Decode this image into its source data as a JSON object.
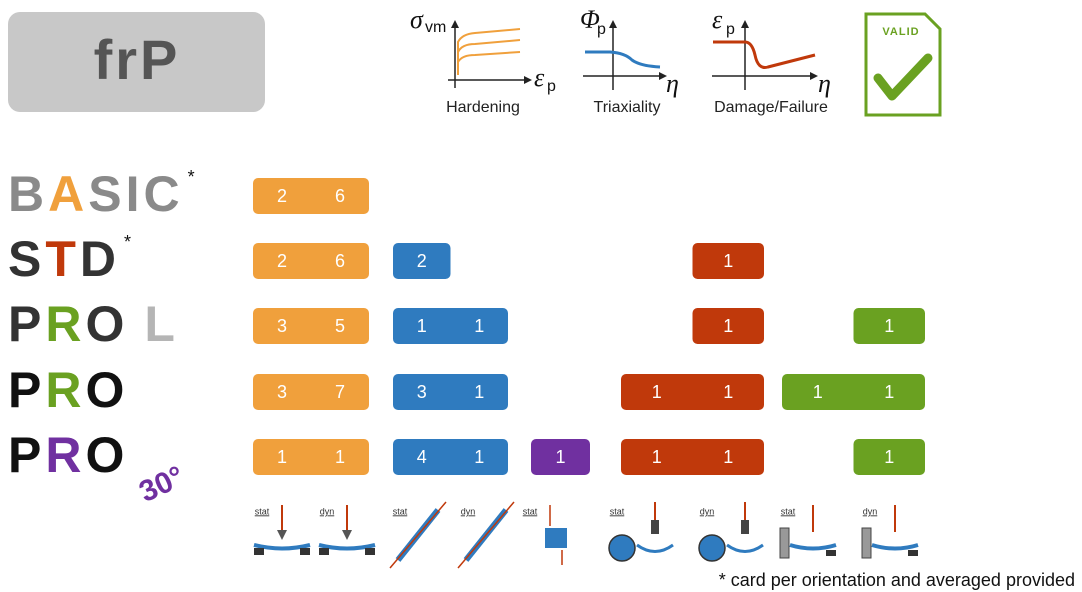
{
  "logo": "frP",
  "header": {
    "plots": [
      {
        "caption": "Hardening",
        "y_symbol": "σ",
        "y_sub": "vm",
        "x_symbol": "ε",
        "x_sub": "p"
      },
      {
        "caption": "Triaxiality",
        "y_symbol": "Φ",
        "y_sub": "p",
        "x_symbol": "η"
      },
      {
        "caption": "Damage/Failure",
        "y_symbol": "ε",
        "y_sub": "p",
        "x_symbol": "η"
      }
    ],
    "valid": "VALID"
  },
  "rows": [
    {
      "label": "BASIC",
      "accent": 1,
      "accent_color": "#f0a03c",
      "text_color": "#8a8a8a",
      "note": "*",
      "groups": [
        {
          "color": "#f0a03c",
          "values": [
            2,
            6
          ]
        },
        {
          "color": "#2f7bbf",
          "values": [
            null,
            null
          ]
        },
        {
          "color": "#7030a0",
          "values": [
            null
          ]
        },
        {
          "color": "#c0390b",
          "values": [
            null,
            null
          ]
        },
        {
          "color": "#6aa121",
          "values": [
            null,
            null
          ]
        }
      ]
    },
    {
      "label": "STD",
      "accent": 1,
      "accent_color": "#c0390b",
      "text_color": "#333333",
      "note": "*",
      "groups": [
        {
          "color": "#f0a03c",
          "values": [
            2,
            6
          ]
        },
        {
          "color": "#2f7bbf",
          "values": [
            2,
            null
          ]
        },
        {
          "color": "#7030a0",
          "values": [
            null
          ]
        },
        {
          "color": "#c0390b",
          "values": [
            null,
            1
          ]
        },
        {
          "color": "#6aa121",
          "values": [
            null,
            null
          ]
        }
      ]
    },
    {
      "label": "PRO",
      "suffix": "L",
      "accent": 1,
      "accent_color": "#6aa121",
      "text_color": "#333333",
      "groups": [
        {
          "color": "#f0a03c",
          "values": [
            3,
            5
          ]
        },
        {
          "color": "#2f7bbf",
          "values": [
            1,
            1
          ]
        },
        {
          "color": "#7030a0",
          "values": [
            null
          ]
        },
        {
          "color": "#c0390b",
          "values": [
            null,
            1
          ]
        },
        {
          "color": "#6aa121",
          "values": [
            null,
            1
          ]
        }
      ]
    },
    {
      "label": "PRO",
      "accent": 1,
      "accent_color": "#6aa121",
      "text_color": "#111111",
      "groups": [
        {
          "color": "#f0a03c",
          "values": [
            3,
            7
          ]
        },
        {
          "color": "#2f7bbf",
          "values": [
            3,
            1
          ]
        },
        {
          "color": "#7030a0",
          "values": [
            null
          ]
        },
        {
          "color": "#c0390b",
          "values": [
            1,
            1
          ]
        },
        {
          "color": "#6aa121",
          "values": [
            1,
            1
          ]
        }
      ]
    },
    {
      "label": "PRO",
      "suffix": "30°",
      "accent": 1,
      "accent_color": "#7030a0",
      "text_color": "#111111",
      "groups": [
        {
          "color": "#f0a03c",
          "values": [
            1,
            1
          ]
        },
        {
          "color": "#2f7bbf",
          "values": [
            4,
            1
          ]
        },
        {
          "color": "#7030a0",
          "values": [
            1
          ]
        },
        {
          "color": "#c0390b",
          "values": [
            1,
            1
          ]
        },
        {
          "color": "#6aa121",
          "values": [
            null,
            1
          ]
        }
      ]
    }
  ],
  "tests": [
    "stat",
    "dyn",
    "stat",
    "dyn",
    "stat",
    "stat",
    "dyn",
    "stat",
    "dyn"
  ],
  "footnote": "* card per orientation and averaged provided"
}
